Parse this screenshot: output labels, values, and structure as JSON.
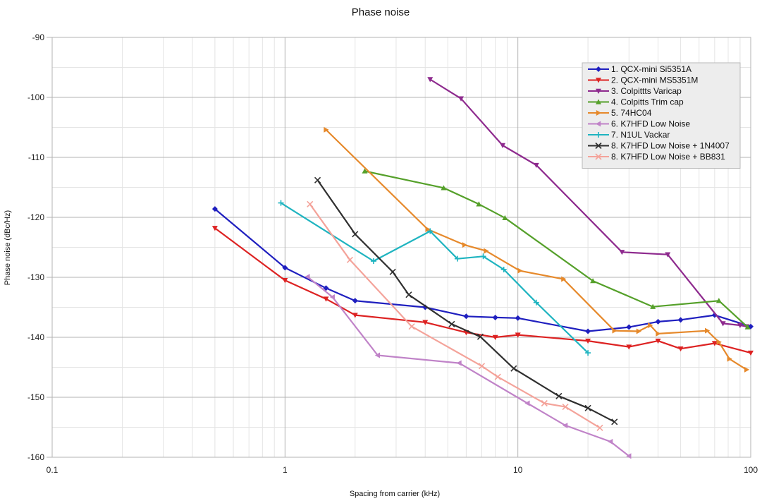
{
  "chart_data": {
    "type": "line",
    "title": "Phase noise",
    "xlabel": "Spacing from carrier (kHz)",
    "ylabel": "Phase noise (dBc/Hz)",
    "xscale": "log",
    "xlim": [
      0.1,
      100
    ],
    "ylim": [
      -160,
      -90
    ],
    "x_ticks": [
      0.1,
      1,
      10,
      100
    ],
    "x_tick_labels": [
      "0.1",
      "1",
      "10",
      "100"
    ],
    "y_ticks": [
      -90,
      -100,
      -110,
      -120,
      -130,
      -140,
      -150,
      -160
    ],
    "y_tick_labels": [
      "-90",
      "-100",
      "-110",
      "-120",
      "-130",
      "-140",
      "-150",
      "-160"
    ],
    "grid": true,
    "legend_position": "top-right",
    "series": [
      {
        "name": "1. QCX-mini Si5351A",
        "color": "#1f1fbf",
        "marker": "diamond",
        "x": [
          0.5,
          1,
          1.5,
          2,
          4,
          6,
          8,
          10,
          20,
          30,
          40,
          50,
          70,
          100
        ],
        "y": [
          -118.6,
          -128.4,
          -131.8,
          -133.9,
          -135.0,
          -136.5,
          -136.7,
          -136.8,
          -139.0,
          -138.3,
          -137.4,
          -137.1,
          -136.3,
          -138.2
        ]
      },
      {
        "name": "2. QCX-mini MS5351M",
        "color": "#dd2222",
        "marker": "triangle-down",
        "x": [
          0.5,
          1,
          1.5,
          2,
          4,
          6,
          8,
          10,
          20,
          30,
          40,
          50,
          70,
          100
        ],
        "y": [
          -121.8,
          -130.5,
          -133.6,
          -136.3,
          -137.5,
          -139.2,
          -140.0,
          -139.6,
          -140.6,
          -141.6,
          -140.6,
          -141.9,
          -141.0,
          -142.6
        ]
      },
      {
        "name": "3. Colpittts Varicap",
        "color": "#8e2a8e",
        "marker": "triangle-down",
        "x": [
          4.2,
          5.7,
          8.6,
          12,
          28,
          44,
          76,
          90,
          96
        ],
        "y": [
          -97.0,
          -100.2,
          -108.0,
          -111.3,
          -125.8,
          -126.2,
          -137.7,
          -138.0,
          -138.2
        ]
      },
      {
        "name": "4. Colpitts Trim cap",
        "color": "#55a02a",
        "marker": "triangle-up",
        "x": [
          2.2,
          4.8,
          6.8,
          8.8,
          21,
          38,
          73,
          97
        ],
        "y": [
          -112.3,
          -115.1,
          -117.8,
          -120.1,
          -130.6,
          -134.9,
          -133.9,
          -138.3
        ]
      },
      {
        "name": "5. 74HC04",
        "color": "#e6892b",
        "marker": "triangle-right",
        "x": [
          1.5,
          4.1,
          5.9,
          7.3,
          10.2,
          15.7,
          26,
          33,
          37,
          40,
          65,
          73,
          81,
          96
        ],
        "y": [
          -105.4,
          -122.0,
          -124.6,
          -125.6,
          -128.9,
          -130.3,
          -138.9,
          -139.0,
          -138.0,
          -139.4,
          -138.9,
          -140.8,
          -143.6,
          -145.4
        ]
      },
      {
        "name": "6. K7HFD Low Noise",
        "color": "#c083c8",
        "marker": "triangle-left",
        "x": [
          1.25,
          1.6,
          2.5,
          5.6,
          11,
          16,
          25,
          30
        ],
        "y": [
          -129.9,
          -133.3,
          -143.0,
          -144.3,
          -151.0,
          -154.7,
          -157.4,
          -159.8
        ]
      },
      {
        "name": "7. N1UL Vackar",
        "color": "#1fb4c0",
        "marker": "plus",
        "x": [
          0.96,
          2.4,
          4.2,
          5.5,
          7.1,
          8.7,
          12,
          20
        ],
        "y": [
          -117.6,
          -127.3,
          -122.3,
          -126.9,
          -126.5,
          -128.7,
          -134.2,
          -142.6
        ]
      },
      {
        "name": "8. K7HFD Low Noise + 1N4007",
        "color": "#2f2f2f",
        "marker": "x",
        "x": [
          1.38,
          2.0,
          2.9,
          3.4,
          5.2,
          6.9,
          9.6,
          15,
          20,
          26
        ],
        "y": [
          -113.8,
          -122.8,
          -129.1,
          -132.9,
          -137.8,
          -139.9,
          -145.2,
          -149.8,
          -151.8,
          -154.1
        ]
      },
      {
        "name": "8. K7HFD Low Noise + BB831",
        "color": "#f4a39a",
        "marker": "x",
        "x": [
          1.28,
          1.9,
          3.5,
          7.0,
          8.2,
          13,
          16,
          22.5
        ],
        "y": [
          -117.8,
          -127.1,
          -138.2,
          -144.8,
          -146.6,
          -151.0,
          -151.6,
          -155.1
        ]
      }
    ]
  }
}
